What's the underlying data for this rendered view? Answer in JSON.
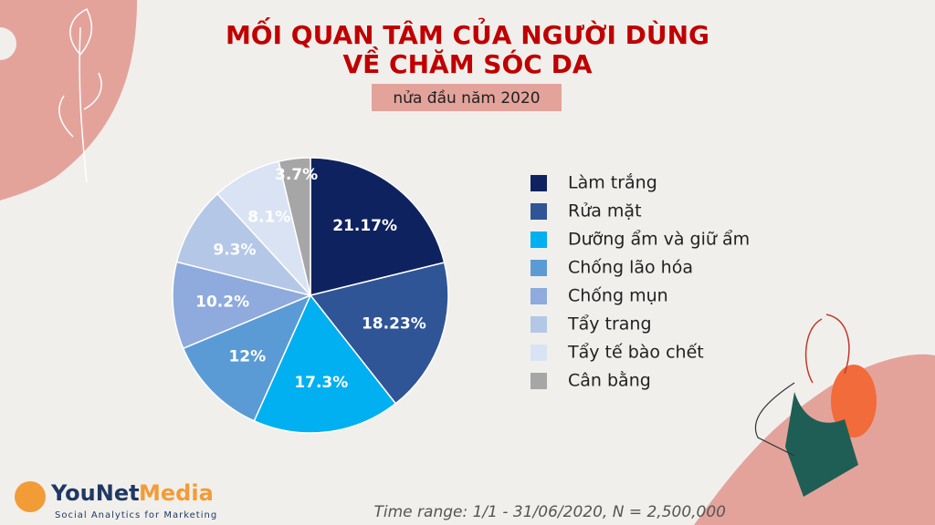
{
  "chart_data": {
    "type": "pie",
    "title_lines": [
      "MỐI QUAN TÂM CỦA NGƯỜI DÙNG",
      "VỀ CHĂM SÓC DA"
    ],
    "subtitle": "nửa đầu năm 2020",
    "series": [
      {
        "name": "Làm trắng",
        "color": "#0f2260"
      },
      {
        "name": "Rửa mặt",
        "color": "#2f5597"
      },
      {
        "name": "Dưỡng ẩm và giữ ẩm",
        "color": "#00b0f0"
      },
      {
        "name": "Chống lão hóa",
        "color": "#5b9bd5"
      },
      {
        "name": "Chống mụn",
        "color": "#8faadc"
      },
      {
        "name": "Tẩy trang",
        "color": "#b4c7e7"
      },
      {
        "name": "Tẩy tế bào chết",
        "color": "#dae3f3"
      },
      {
        "name": "Cân bằng",
        "color": "#a6a6a6"
      }
    ],
    "values": [
      21.17,
      18.23,
      17.3,
      12,
      10.2,
      9.3,
      8.1,
      3.7
    ],
    "value_labels": [
      "21.17%",
      "18.23%",
      "17.3%",
      "12%",
      "10.2%",
      "9.3%",
      "8.1%",
      "3.7%"
    ],
    "note": "Time range: 1/1 - 31/06/2020, N = 2,500,000"
  },
  "logo": {
    "part_1": "YouNet",
    "part_2": "Media",
    "tagline": "Social Analytics for Marketing"
  }
}
